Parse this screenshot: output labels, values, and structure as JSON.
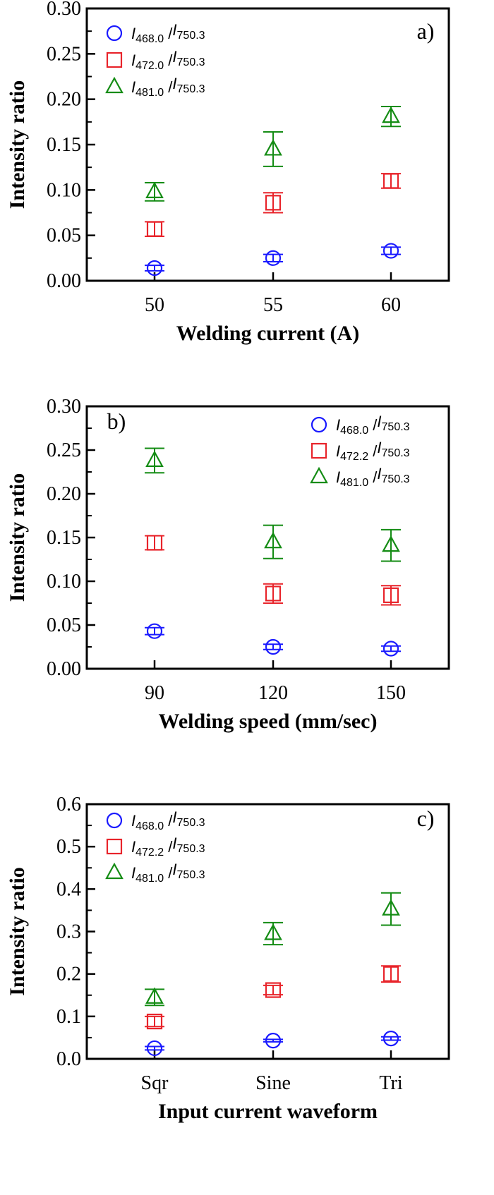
{
  "chart_data": [
    {
      "panel_label": "a)",
      "type": "scatter",
      "xlabel": "Welding current (A)",
      "ylabel": "Intensity ratio",
      "categories": [
        "50",
        "55",
        "60"
      ],
      "ylim": [
        0,
        0.3
      ],
      "yticks": [
        "0.00",
        "0.05",
        "0.10",
        "0.15",
        "0.20",
        "0.25",
        "0.30"
      ],
      "legend_position": "top-left",
      "series": [
        {
          "name": "I468.0 /I750.3",
          "num": "468.0",
          "den": "750.3",
          "marker": "circle",
          "color": "#1a1aff",
          "values": [
            0.014,
            0.025,
            0.033
          ],
          "errors": [
            0.003,
            0.004,
            0.004
          ]
        },
        {
          "name": "I472.0 /I750.3",
          "num": "472.0",
          "den": "750.3",
          "marker": "square",
          "color": "#e8242b",
          "values": [
            0.057,
            0.086,
            0.11
          ],
          "errors": [
            0.008,
            0.011,
            0.008
          ]
        },
        {
          "name": "I481.0 /I750.3",
          "num": "481.0",
          "den": "750.3",
          "marker": "triangle",
          "color": "#148c14",
          "values": [
            0.098,
            0.145,
            0.181
          ],
          "errors": [
            0.01,
            0.019,
            0.011
          ]
        }
      ]
    },
    {
      "panel_label": "b)",
      "type": "scatter",
      "xlabel": "Welding speed (mm/sec)",
      "ylabel": "Intensity ratio",
      "categories": [
        "90",
        "120",
        "150"
      ],
      "ylim": [
        0,
        0.3
      ],
      "yticks": [
        "0.00",
        "0.05",
        "0.10",
        "0.15",
        "0.20",
        "0.25",
        "0.30"
      ],
      "legend_position": "top-right",
      "series": [
        {
          "name": "I468.0 /I750.3",
          "num": "468.0",
          "den": "750.3",
          "marker": "circle",
          "color": "#1a1aff",
          "values": [
            0.043,
            0.025,
            0.023
          ],
          "errors": [
            0.004,
            0.003,
            0.003
          ]
        },
        {
          "name": "I472.2 /I750.3",
          "num": "472.2",
          "den": "750.3",
          "marker": "square",
          "color": "#e8242b",
          "values": [
            0.144,
            0.086,
            0.084
          ],
          "errors": [
            0.008,
            0.011,
            0.011
          ]
        },
        {
          "name": "I481.0 /I750.3",
          "num": "481.0",
          "den": "750.3",
          "marker": "triangle",
          "color": "#148c14",
          "values": [
            0.238,
            0.145,
            0.141
          ],
          "errors": [
            0.014,
            0.019,
            0.018
          ]
        }
      ]
    },
    {
      "panel_label": "c)",
      "type": "scatter",
      "xlabel": "Input current waveform",
      "ylabel": "Intensity ratio",
      "categories": [
        "Sqr",
        "Sine",
        "Tri"
      ],
      "ylim": [
        0,
        0.6
      ],
      "yticks": [
        "0.0",
        "0.1",
        "0.2",
        "0.3",
        "0.4",
        "0.5",
        "0.6"
      ],
      "legend_position": "top-left",
      "series": [
        {
          "name": "I468.0 /I750.3",
          "num": "468.0",
          "den": "750.3",
          "marker": "circle",
          "color": "#1a1aff",
          "values": [
            0.025,
            0.043,
            0.048
          ],
          "errors": [
            0.004,
            0.003,
            0.004
          ]
        },
        {
          "name": "I472.2 /I750.3",
          "num": "472.2",
          "den": "750.3",
          "marker": "square",
          "color": "#e8242b",
          "values": [
            0.088,
            0.162,
            0.2
          ],
          "errors": [
            0.012,
            0.011,
            0.019
          ]
        },
        {
          "name": "I481.0 /I750.3",
          "num": "481.0",
          "den": "750.3",
          "marker": "triangle",
          "color": "#148c14",
          "values": [
            0.145,
            0.295,
            0.353
          ],
          "errors": [
            0.019,
            0.026,
            0.038
          ]
        }
      ]
    }
  ]
}
